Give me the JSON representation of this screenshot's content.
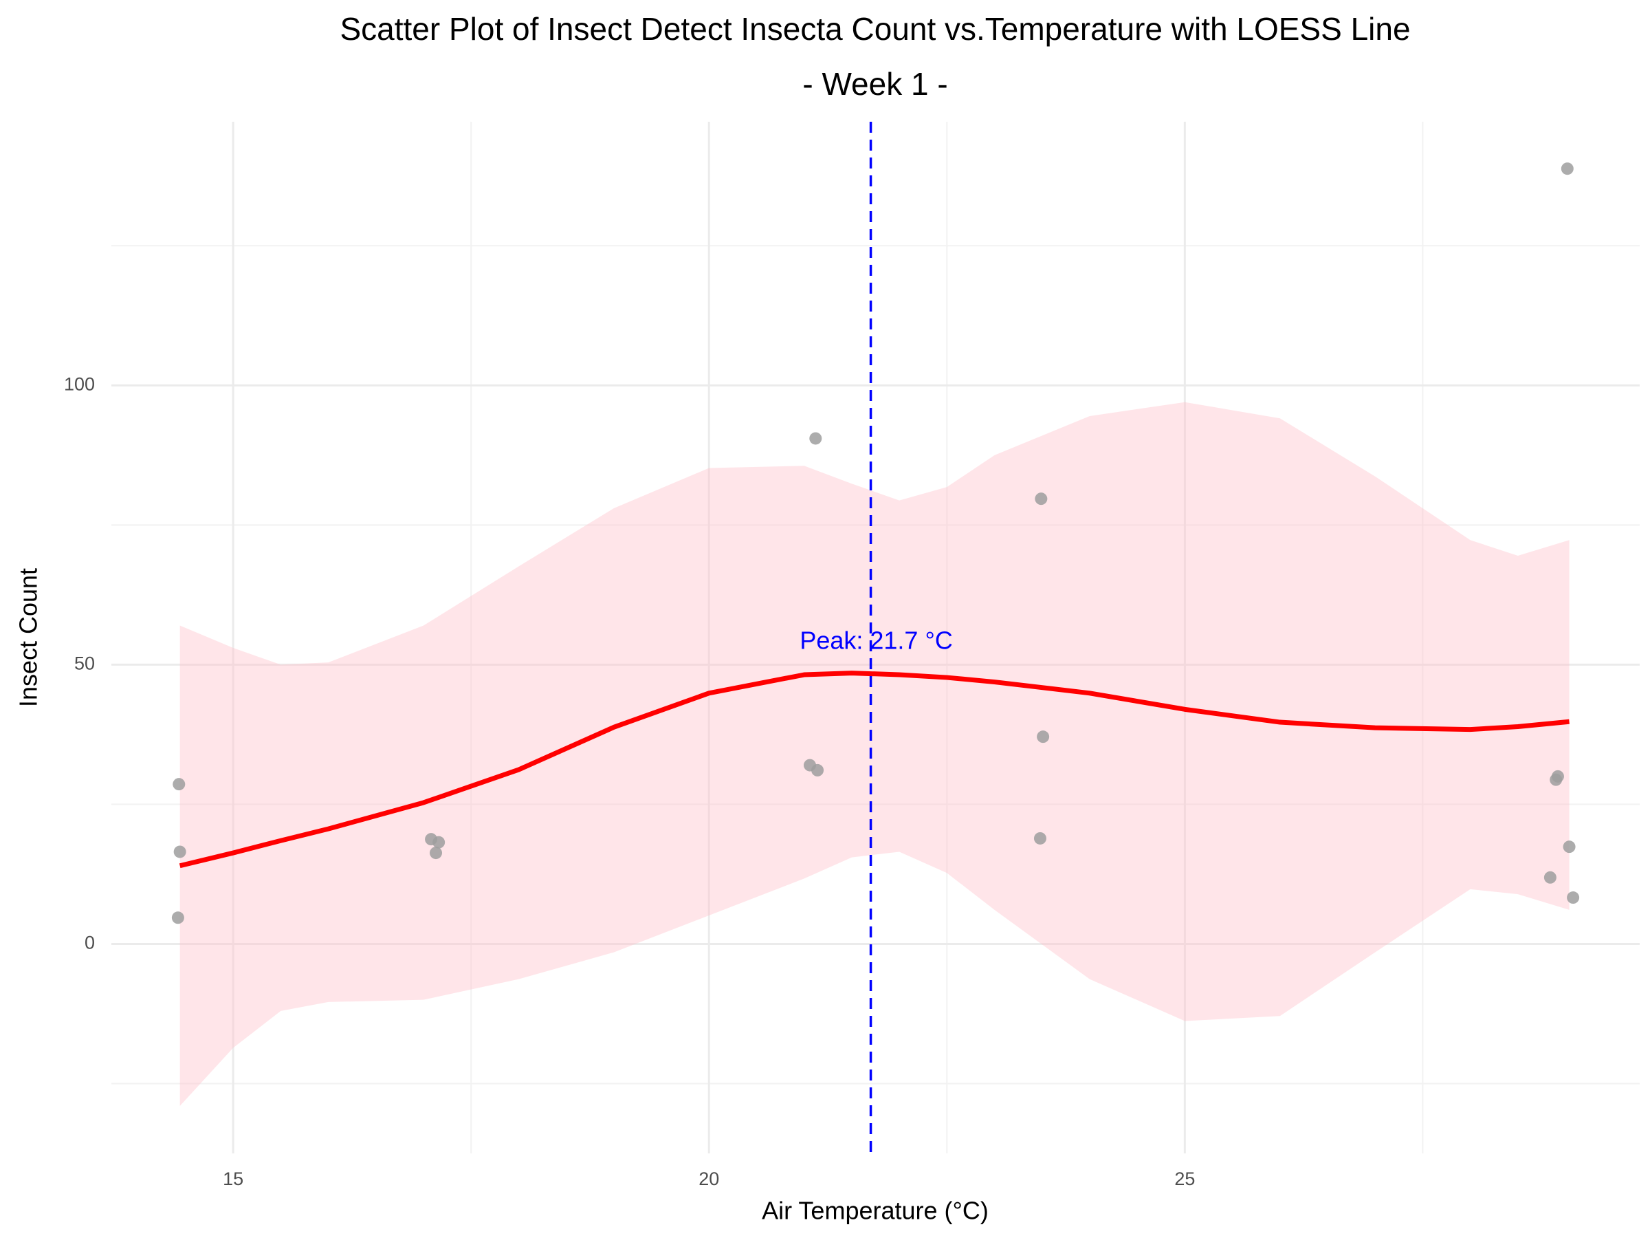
{
  "chart_data": {
    "type": "scatter",
    "title": "Scatter Plot of Insect Detect Insecta Count vs.Temperature with LOESS Line",
    "subtitle": "- Week 1 -",
    "x_label": "Air Temperature (°C)",
    "y_label": "Insect Count",
    "xlim": [
      13.72,
      29.78
    ],
    "ylim": [
      -37.5,
      147.2
    ],
    "xticks": [
      15,
      20,
      25
    ],
    "yticks": [
      0,
      50,
      100
    ],
    "xminor_ticks": [
      17.5,
      22.5,
      27.5
    ],
    "yminor_ticks": [
      -25,
      25,
      75,
      125
    ],
    "grid": true,
    "points": {
      "color": "#9e9e9e",
      "x": [
        14.42,
        14.43,
        14.44,
        17.08,
        17.16,
        17.13,
        21.12,
        21.06,
        21.14,
        23.49,
        23.51,
        23.48,
        29.02,
        28.9,
        28.92,
        29.04,
        28.84,
        29.08
      ],
      "y": [
        4.7,
        28.6,
        16.5,
        18.75,
        18.2,
        16.3,
        90.5,
        32.0,
        31.1,
        79.7,
        37.1,
        18.9,
        138.8,
        29.4,
        30.0,
        17.4,
        11.9,
        8.3
      ]
    },
    "loess": {
      "color": "#ff0000",
      "band_color": "#ffc0cb",
      "x": [
        14.44,
        15,
        15.5,
        16,
        17,
        18,
        19,
        20,
        21,
        21.5,
        22,
        22.5,
        23,
        24,
        25,
        26,
        27,
        28,
        28.5,
        29.04
      ],
      "y": [
        14.0,
        16.3,
        18.5,
        20.6,
        25.3,
        31.2,
        38.8,
        44.9,
        48.2,
        48.5,
        48.2,
        47.7,
        46.9,
        44.9,
        42.0,
        39.7,
        38.7,
        38.4,
        38.9,
        39.8
      ],
      "lower": [
        -29,
        -18.6,
        -12,
        -10.4,
        -10,
        -6.3,
        -1.5,
        5.1,
        11.7,
        15.5,
        16.5,
        12.7,
        6.1,
        -6.3,
        -13.8,
        -12.9,
        -1.5,
        9.8,
        8.9,
        6.1
      ],
      "upper": [
        57,
        53,
        50,
        50.4,
        57,
        67.6,
        78,
        85.2,
        85.6,
        82.4,
        79.4,
        81.8,
        87.5,
        94.5,
        97,
        94.1,
        83.7,
        72.3,
        69.5,
        72.3
      ]
    },
    "peak": {
      "x": 21.7,
      "label": "Peak: 21.7 °C",
      "color": "#0000ff"
    }
  }
}
